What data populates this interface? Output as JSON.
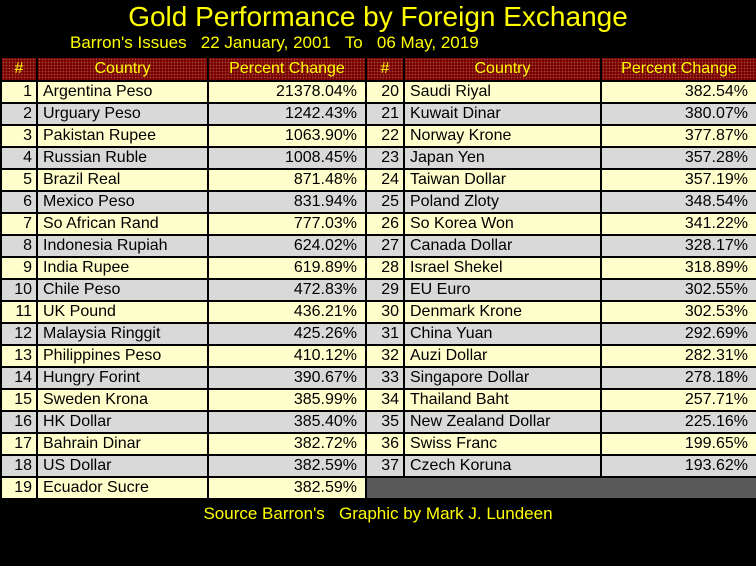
{
  "title": "Gold Performance by Foreign Exchange",
  "subtitle": "Barron's Issues   22 January, 2001   To   06 May, 2019",
  "footer": "Source Barron's   Graphic by Mark J. Lundeen",
  "colors": {
    "background": "#000000",
    "accent_yellow": "#FFFF00",
    "header_bg": "#7A0000",
    "row_cream": "#FFFFCC",
    "row_gray": "#D9D9D9",
    "filler_gray": "#595959",
    "border_color": "#000000",
    "cell_text": "#000000"
  },
  "table": {
    "columns": [
      "#",
      "Country",
      "Percent Change",
      "#",
      "Country",
      "Percent Change"
    ],
    "left_rows": [
      {
        "rank": "1",
        "country": "Argentina Peso",
        "pct": "21378.04%"
      },
      {
        "rank": "2",
        "country": "Urguary Peso",
        "pct": "1242.43%"
      },
      {
        "rank": "3",
        "country": "Pakistan Rupee",
        "pct": "1063.90%"
      },
      {
        "rank": "4",
        "country": "Russian Ruble",
        "pct": "1008.45%"
      },
      {
        "rank": "5",
        "country": "Brazil Real",
        "pct": "871.48%"
      },
      {
        "rank": "6",
        "country": "Mexico Peso",
        "pct": "831.94%"
      },
      {
        "rank": "7",
        "country": "So African Rand",
        "pct": "777.03%"
      },
      {
        "rank": "8",
        "country": "Indonesia Rupiah",
        "pct": "624.02%"
      },
      {
        "rank": "9",
        "country": "India Rupee",
        "pct": "619.89%"
      },
      {
        "rank": "10",
        "country": "Chile Peso",
        "pct": "472.83%"
      },
      {
        "rank": "11",
        "country": "UK Pound",
        "pct": "436.21%"
      },
      {
        "rank": "12",
        "country": "Malaysia Ringgit",
        "pct": "425.26%"
      },
      {
        "rank": "13",
        "country": "Philippines Peso",
        "pct": "410.12%"
      },
      {
        "rank": "14",
        "country": "Hungry Forint",
        "pct": "390.67%"
      },
      {
        "rank": "15",
        "country": "Sweden Krona",
        "pct": "385.99%"
      },
      {
        "rank": "16",
        "country": "HK Dollar",
        "pct": "385.40%"
      },
      {
        "rank": "17",
        "country": "Bahrain Dinar",
        "pct": "382.72%"
      },
      {
        "rank": "18",
        "country": "US Dollar",
        "pct": "382.59%"
      },
      {
        "rank": "19",
        "country": "Ecuador Sucre",
        "pct": "382.59%"
      }
    ],
    "right_rows": [
      {
        "rank": "20",
        "country": "Saudi Riyal",
        "pct": "382.54%"
      },
      {
        "rank": "21",
        "country": "Kuwait Dinar",
        "pct": "380.07%"
      },
      {
        "rank": "22",
        "country": "Norway Krone",
        "pct": "377.87%"
      },
      {
        "rank": "23",
        "country": "Japan Yen",
        "pct": "357.28%"
      },
      {
        "rank": "24",
        "country": "Taiwan Dollar",
        "pct": "357.19%"
      },
      {
        "rank": "25",
        "country": "Poland Zloty",
        "pct": "348.54%"
      },
      {
        "rank": "26",
        "country": "So Korea Won",
        "pct": "341.22%"
      },
      {
        "rank": "27",
        "country": "Canada Dollar",
        "pct": "328.17%"
      },
      {
        "rank": "28",
        "country": "Israel Shekel",
        "pct": "318.89%"
      },
      {
        "rank": "29",
        "country": "EU Euro",
        "pct": "302.55%"
      },
      {
        "rank": "30",
        "country": "Denmark Krone",
        "pct": "302.53%"
      },
      {
        "rank": "31",
        "country": "China Yuan",
        "pct": "292.69%"
      },
      {
        "rank": "32",
        "country": "Auzi Dollar",
        "pct": "282.31%"
      },
      {
        "rank": "33",
        "country": "Singapore Dollar",
        "pct": "278.18%"
      },
      {
        "rank": "34",
        "country": "Thailand Baht",
        "pct": "257.71%"
      },
      {
        "rank": "35",
        "country": "New Zealand Dollar",
        "pct": "225.16%"
      },
      {
        "rank": "36",
        "country": "Swiss Franc",
        "pct": "199.65%"
      },
      {
        "rank": "37",
        "country": "Czech Koruna",
        "pct": "193.62%"
      }
    ]
  },
  "chart_data": {
    "type": "table",
    "title": "Gold Performance by Foreign Exchange",
    "subtitle": "Barron's Issues 22 January, 2001 To 06 May, 2019",
    "columns": [
      "Rank",
      "Country",
      "Percent Change (%)"
    ],
    "rows": [
      [
        1,
        "Argentina Peso",
        21378.04
      ],
      [
        2,
        "Urguary Peso",
        1242.43
      ],
      [
        3,
        "Pakistan Rupee",
        1063.9
      ],
      [
        4,
        "Russian Ruble",
        1008.45
      ],
      [
        5,
        "Brazil Real",
        871.48
      ],
      [
        6,
        "Mexico Peso",
        831.94
      ],
      [
        7,
        "So African Rand",
        777.03
      ],
      [
        8,
        "Indonesia Rupiah",
        624.02
      ],
      [
        9,
        "India Rupee",
        619.89
      ],
      [
        10,
        "Chile Peso",
        472.83
      ],
      [
        11,
        "UK Pound",
        436.21
      ],
      [
        12,
        "Malaysia Ringgit",
        425.26
      ],
      [
        13,
        "Philippines Peso",
        410.12
      ],
      [
        14,
        "Hungry Forint",
        390.67
      ],
      [
        15,
        "Sweden Krona",
        385.99
      ],
      [
        16,
        "HK Dollar",
        385.4
      ],
      [
        17,
        "Bahrain Dinar",
        382.72
      ],
      [
        18,
        "US Dollar",
        382.59
      ],
      [
        19,
        "Ecuador Sucre",
        382.59
      ],
      [
        20,
        "Saudi Riyal",
        382.54
      ],
      [
        21,
        "Kuwait Dinar",
        380.07
      ],
      [
        22,
        "Norway Krone",
        377.87
      ],
      [
        23,
        "Japan Yen",
        357.28
      ],
      [
        24,
        "Taiwan Dollar",
        357.19
      ],
      [
        25,
        "Poland Zloty",
        348.54
      ],
      [
        26,
        "So Korea Won",
        341.22
      ],
      [
        27,
        "Canada Dollar",
        328.17
      ],
      [
        28,
        "Israel Shekel",
        318.89
      ],
      [
        29,
        "EU Euro",
        302.55
      ],
      [
        30,
        "Denmark Krone",
        302.53
      ],
      [
        31,
        "China Yuan",
        292.69
      ],
      [
        32,
        "Auzi Dollar",
        282.31
      ],
      [
        33,
        "Singapore Dollar",
        278.18
      ],
      [
        34,
        "Thailand Baht",
        257.71
      ],
      [
        35,
        "New Zealand Dollar",
        225.16
      ],
      [
        36,
        "Swiss Franc",
        199.65
      ],
      [
        37,
        "Czech Koruna",
        193.62
      ]
    ],
    "footer": "Source Barron's Graphic by Mark J. Lundeen",
    "layout": {
      "columns_side_by_side": 2,
      "left_ranks": "1-19",
      "right_ranks": "20-37"
    }
  }
}
